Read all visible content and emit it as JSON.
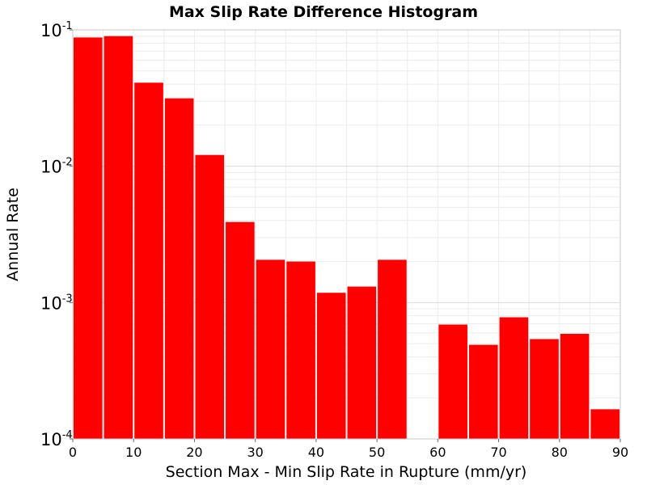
{
  "chart_data": {
    "type": "bar",
    "title": "Max Slip Rate Difference Histogram",
    "xlabel": "Section Max - Min Slip Rate in Rupture (mm/yr)",
    "ylabel": "Annual Rate",
    "xlim": [
      0,
      90
    ],
    "ylim": [
      0.0001,
      0.1
    ],
    "yscale": "log",
    "grid": true,
    "bar_color": "#ff0000",
    "bin_width": 5,
    "x_ticks": [
      "0",
      "10",
      "20",
      "30",
      "40",
      "50",
      "60",
      "70",
      "80",
      "90"
    ],
    "x_tick_values": [
      0,
      10,
      20,
      30,
      40,
      50,
      60,
      70,
      80,
      90
    ],
    "y_ticks": [
      {
        "value": 0.1,
        "base": "10",
        "exp": "-1"
      },
      {
        "value": 0.01,
        "base": "10",
        "exp": "-2"
      },
      {
        "value": 0.001,
        "base": "10",
        "exp": "-3"
      },
      {
        "value": 0.0001,
        "base": "10",
        "exp": "-4"
      }
    ],
    "bins": [
      {
        "x0": 0,
        "x1": 5,
        "value": 0.088
      },
      {
        "x0": 5,
        "x1": 10,
        "value": 0.09
      },
      {
        "x0": 10,
        "x1": 15,
        "value": 0.041
      },
      {
        "x0": 15,
        "x1": 20,
        "value": 0.0315
      },
      {
        "x0": 20,
        "x1": 25,
        "value": 0.0121
      },
      {
        "x0": 25,
        "x1": 30,
        "value": 0.0039
      },
      {
        "x0": 30,
        "x1": 35,
        "value": 0.00206
      },
      {
        "x0": 35,
        "x1": 40,
        "value": 0.002
      },
      {
        "x0": 40,
        "x1": 45,
        "value": 0.00118
      },
      {
        "x0": 45,
        "x1": 50,
        "value": 0.00131
      },
      {
        "x0": 50,
        "x1": 55,
        "value": 0.00206
      },
      {
        "x0": 60,
        "x1": 65,
        "value": 0.00069
      },
      {
        "x0": 65,
        "x1": 70,
        "value": 0.00049
      },
      {
        "x0": 70,
        "x1": 75,
        "value": 0.00078
      },
      {
        "x0": 75,
        "x1": 80,
        "value": 0.00054
      },
      {
        "x0": 80,
        "x1": 85,
        "value": 0.00059
      },
      {
        "x0": 85,
        "x1": 90,
        "value": 0.000165
      }
    ]
  }
}
